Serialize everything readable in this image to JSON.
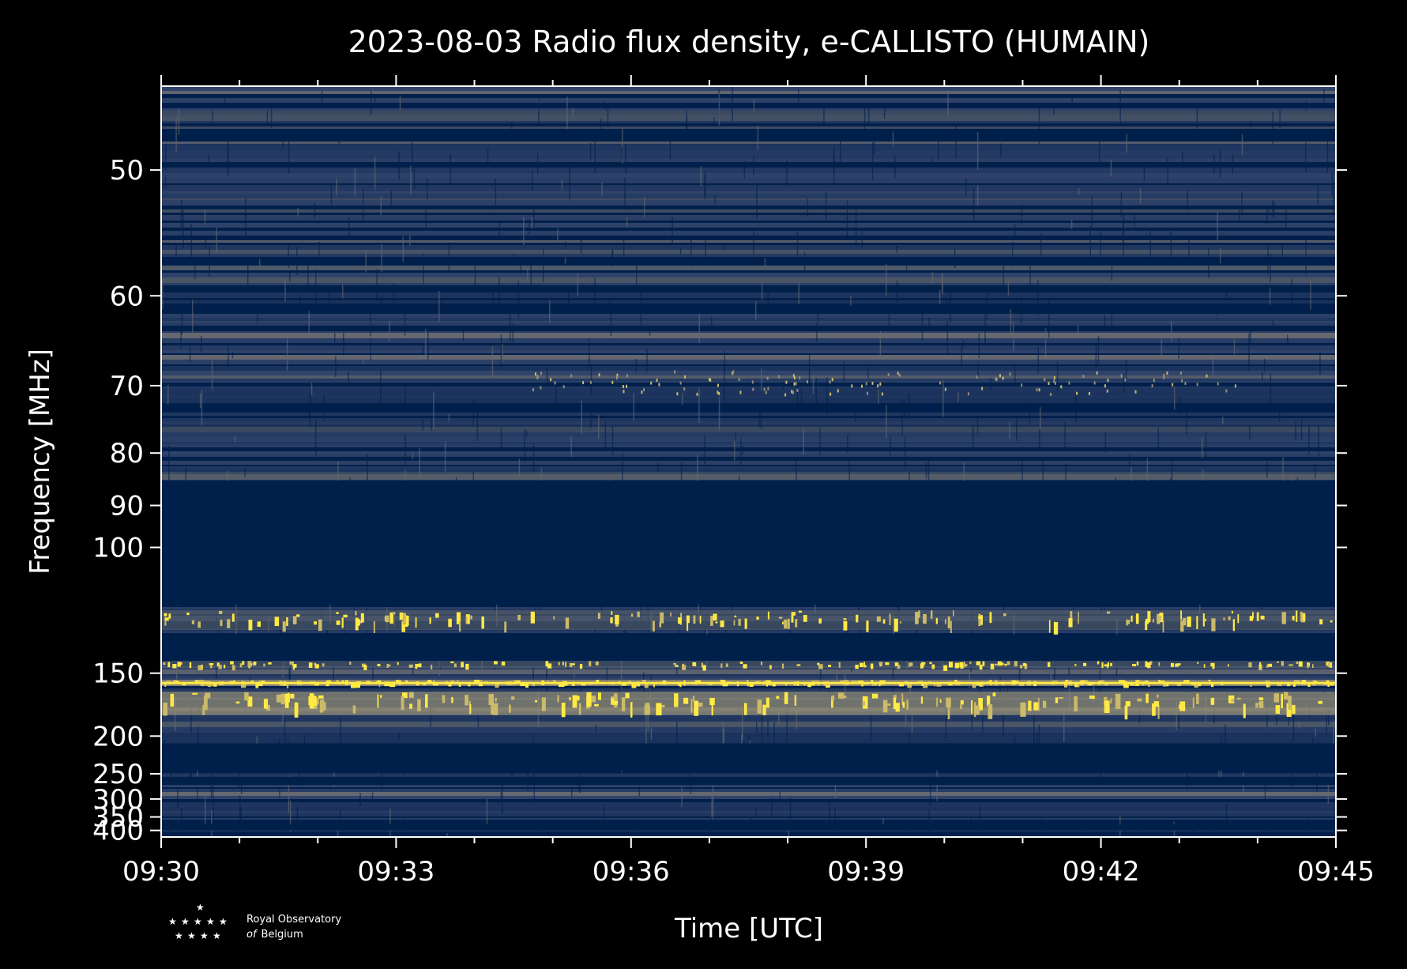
{
  "chart_data": {
    "type": "heatmap",
    "title": "2023-08-03 Radio flux density, e-CALLISTO (HUMAIN)",
    "xlabel": "Time [UTC]",
    "ylabel": "Frequency [MHz]",
    "x_ticks": [
      "09:30",
      "09:33",
      "09:36",
      "09:39",
      "09:42",
      "09:45"
    ],
    "x_range_minutes": [
      0,
      15
    ],
    "y_ticks": [
      50,
      60,
      70,
      80,
      90,
      100,
      150,
      200,
      250,
      300,
      350,
      400
    ],
    "y_scale": "reciprocal (frequency increases downward)",
    "ylim": [
      45,
      430
    ],
    "colormap": [
      "#00204c",
      "#31446b",
      "#666970",
      "#958f78",
      "#cbba69",
      "#ffe945"
    ],
    "masked_bands_mhz": [
      [
        85,
        118
      ],
      [
        130,
        143
      ],
      [
        208,
        245
      ],
      [
        255,
        270
      ],
      [
        375,
        400
      ]
    ],
    "bright_bands_mhz": [
      {
        "freq": [
          120,
          128
        ],
        "level": "intermittent bright"
      },
      {
        "freq": [
          143,
          147
        ],
        "level": "bright"
      },
      {
        "freq": [
          154,
          158
        ],
        "level": "strong continuous"
      },
      {
        "freq": [
          162,
          180
        ],
        "level": "strong intermittent"
      }
    ]
  },
  "logo": {
    "line1": "Royal Observatory",
    "line2_italic": "of",
    "line2": "Belgium"
  }
}
